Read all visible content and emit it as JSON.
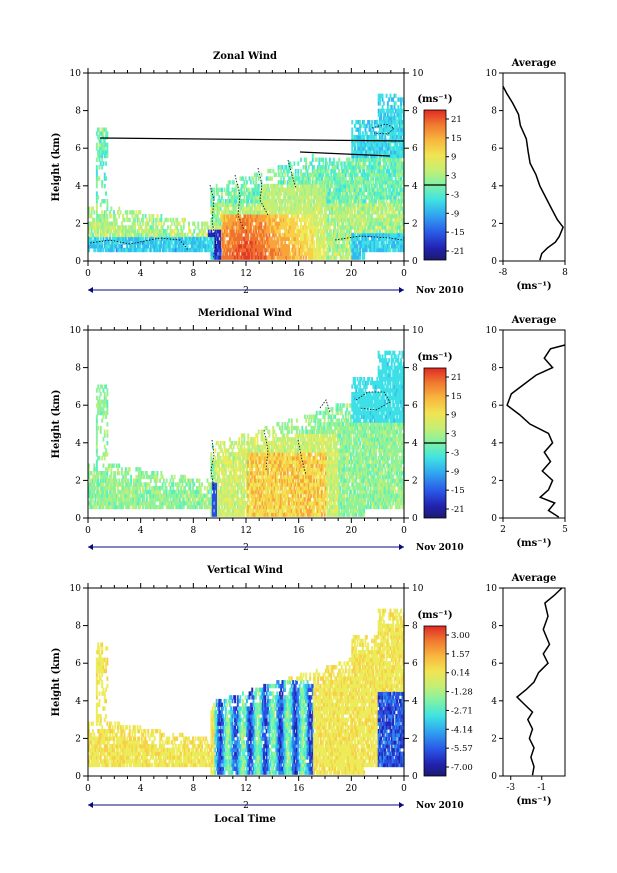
{
  "shared": {
    "time_ticks": [
      "0",
      "4",
      "8",
      "12",
      "16",
      "20",
      "0"
    ],
    "date_marker": "2",
    "date_label": "Nov 2010",
    "ylabel": "Height (km)",
    "height_ticks": [
      "0",
      "2",
      "4",
      "6",
      "8",
      "10"
    ],
    "unit_label": "(ms⁻¹)",
    "avg_title": "Average",
    "xlabel": "Local Time"
  },
  "colors": {
    "scale": [
      "#1b1b7a",
      "#2424b8",
      "#2a4fe0",
      "#2d86ee",
      "#33b9f0",
      "#3de0e6",
      "#58f0c0",
      "#8ef29a",
      "#c3ef78",
      "#ecec5a",
      "#f8cf46",
      "#f8a43a",
      "#f0702f",
      "#e23a28"
    ]
  },
  "chart_data": [
    {
      "type": "heatmap",
      "title": "Zonal Wind",
      "colorbar_ticks": [
        "21",
        "15",
        "9",
        "3",
        "-3",
        "-9",
        "-15",
        "-21"
      ],
      "vrange": [
        -24,
        24
      ],
      "x_range_hours": [
        0,
        24
      ],
      "y_range_km": [
        0,
        10
      ],
      "average_profile": {
        "xticks": [
          "-8",
          "8"
        ],
        "xlim": [
          -8,
          8
        ],
        "points": [
          [
            -8,
            9.3
          ],
          [
            -7,
            8.9
          ],
          [
            -5.5,
            8.4
          ],
          [
            -4,
            7.8
          ],
          [
            -3.5,
            7.2
          ],
          [
            -2,
            6.5
          ],
          [
            -1.5,
            5.8
          ],
          [
            -1,
            5.2
          ],
          [
            0.5,
            4.6
          ],
          [
            1.5,
            4.0
          ],
          [
            3,
            3.4
          ],
          [
            4.5,
            2.8
          ],
          [
            6,
            2.2
          ],
          [
            7.5,
            1.8
          ],
          [
            6.5,
            1.3
          ],
          [
            5.5,
            1.0
          ],
          [
            3.5,
            0.7
          ],
          [
            2,
            0.4
          ],
          [
            1.5,
            0.05
          ]
        ]
      }
    },
    {
      "type": "heatmap",
      "title": "Meridional Wind",
      "colorbar_ticks": [
        "21",
        "15",
        "9",
        "3",
        "-3",
        "-9",
        "-15",
        "-21"
      ],
      "vrange": [
        -24,
        24
      ],
      "x_range_hours": [
        0,
        24
      ],
      "y_range_km": [
        0,
        10
      ],
      "average_profile": {
        "xticks": [
          "2",
          "5"
        ],
        "xlim": [
          2,
          5
        ],
        "points": [
          [
            5,
            9.2
          ],
          [
            4.3,
            9.0
          ],
          [
            4.0,
            8.5
          ],
          [
            4.4,
            8.0
          ],
          [
            3.6,
            7.6
          ],
          [
            3.0,
            7.1
          ],
          [
            2.4,
            6.6
          ],
          [
            2.2,
            6.0
          ],
          [
            2.8,
            5.5
          ],
          [
            3.3,
            5.0
          ],
          [
            4.2,
            4.5
          ],
          [
            4.4,
            4.0
          ],
          [
            4.0,
            3.5
          ],
          [
            4.3,
            3.0
          ],
          [
            3.9,
            2.5
          ],
          [
            4.4,
            2.0
          ],
          [
            4.2,
            1.5
          ],
          [
            3.8,
            1.1
          ],
          [
            4.5,
            0.8
          ],
          [
            4.2,
            0.4
          ],
          [
            4.7,
            0.05
          ]
        ]
      }
    },
    {
      "type": "heatmap",
      "title": "Vertical Wind",
      "colorbar_ticks": [
        "3.00",
        "1.57",
        "0.14",
        "-1.28",
        "-2.71",
        "-4.14",
        "-5.57",
        "-7.00"
      ],
      "vrange": [
        -7.7,
        3.7
      ],
      "x_range_hours": [
        0,
        24
      ],
      "y_range_km": [
        0,
        10
      ],
      "average_profile": {
        "xticks": [
          "-3",
          "-1"
        ],
        "xlim": [
          -3.5,
          0.5
        ],
        "points": [
          [
            0.3,
            10
          ],
          [
            -0.2,
            9.6
          ],
          [
            -0.8,
            9.2
          ],
          [
            -0.6,
            8.5
          ],
          [
            -0.9,
            7.8
          ],
          [
            -0.5,
            7.0
          ],
          [
            -0.9,
            6.5
          ],
          [
            -0.6,
            6.0
          ],
          [
            -1.2,
            5.5
          ],
          [
            -1.5,
            5.0
          ],
          [
            -2.0,
            4.6
          ],
          [
            -2.6,
            4.2
          ],
          [
            -2.1,
            3.8
          ],
          [
            -1.6,
            3.4
          ],
          [
            -1.9,
            3.0
          ],
          [
            -1.6,
            2.5
          ],
          [
            -1.8,
            2.0
          ],
          [
            -1.5,
            1.5
          ],
          [
            -1.7,
            1.0
          ],
          [
            -1.5,
            0.5
          ],
          [
            -1.6,
            0.05
          ]
        ]
      }
    }
  ]
}
